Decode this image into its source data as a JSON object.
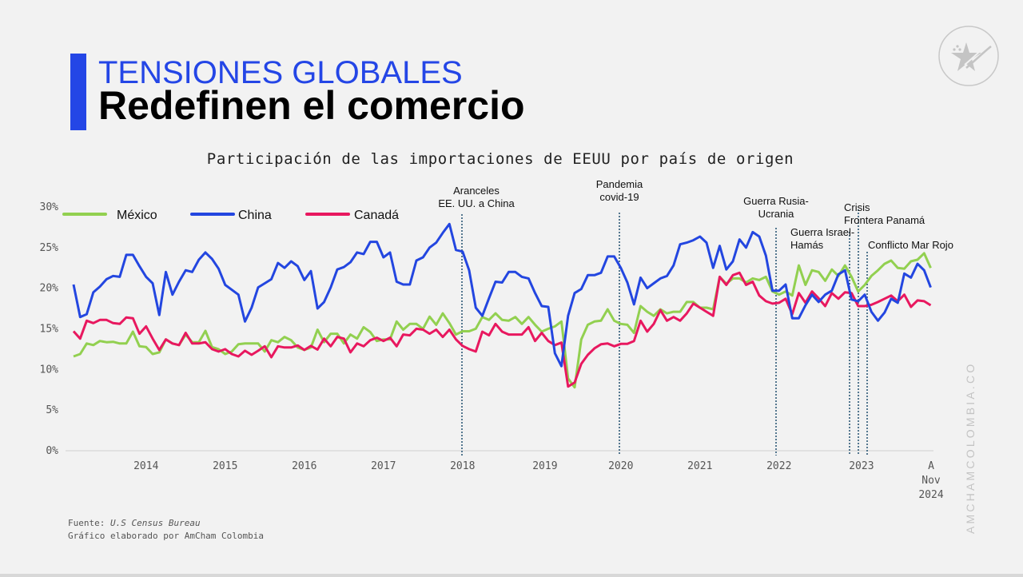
{
  "header": {
    "title_line1": "TENSIONES GLOBALES",
    "title_line2": "Redefinen el comercio"
  },
  "logo": {
    "name": "amcham-star-logo-icon"
  },
  "side_text": "AMCHAMCOLOMBIA.CO",
  "source": {
    "label": "Fuente: ",
    "value": "U.S Census Bureau",
    "credit": "Gráfico elaborado por AmCham Colombia"
  },
  "colors": {
    "mexico": "#92d050",
    "china": "#2346e0",
    "canada": "#e8185f",
    "background": "#f2f2f2",
    "accent": "#2446e6"
  },
  "chart_data": {
    "type": "line",
    "title": "Participación de las importaciones de EEUU por país de origen",
    "xlabel": "",
    "ylabel": "",
    "ylim": [
      0,
      30
    ],
    "y_ticks": [
      "0%",
      "5%",
      "10%",
      "15%",
      "20%",
      "25%",
      "30%"
    ],
    "x_ticks": [
      "2014",
      "2015",
      "2016",
      "2017",
      "2018",
      "2019",
      "2020",
      "2021",
      "2022",
      "2023"
    ],
    "x_last_label": [
      "A",
      "Nov",
      "2024"
    ],
    "grid": false,
    "legend": "top-left",
    "frequency": "monthly",
    "series": [
      {
        "name": "México",
        "color": "#92d050",
        "values": [
          11.6,
          11.9,
          13.2,
          13.0,
          13.5,
          13.35,
          13.4,
          13.2,
          13.2,
          14.65,
          12.85,
          12.75,
          11.9,
          12.1,
          13.7,
          13.2,
          13.0,
          14.3,
          13.35,
          13.35,
          14.75,
          12.75,
          12.5,
          11.9,
          12.2,
          13.1,
          13.2,
          13.2,
          13.2,
          12.2,
          13.6,
          13.35,
          14.0,
          13.6,
          12.7,
          12.4,
          12.7,
          14.9,
          13.35,
          14.4,
          14.4,
          13.2,
          14.3,
          13.8,
          15.2,
          14.6,
          13.5,
          13.7,
          13.7,
          15.9,
          14.9,
          15.6,
          15.6,
          15.0,
          16.5,
          15.5,
          16.9,
          15.7,
          14.3,
          14.7,
          14.7,
          15.0,
          16.45,
          16.1,
          16.9,
          16.1,
          16.0,
          16.45,
          15.6,
          16.45,
          15.5,
          14.65,
          15.0,
          15.3,
          15.9,
          8.9,
          7.8,
          13.7,
          15.5,
          15.9,
          16.0,
          17.4,
          16.0,
          15.6,
          15.5,
          14.5,
          17.8,
          17.1,
          16.6,
          17.4,
          16.9,
          17.1,
          17.1,
          18.3,
          18.3,
          17.6,
          17.6,
          17.4,
          21.4,
          20.55,
          21.2,
          21.2,
          20.7,
          21.2,
          21.0,
          21.4,
          19.6,
          19.2,
          19.6,
          19.1,
          22.8,
          20.4,
          22.2,
          22.0,
          20.9,
          22.3,
          21.5,
          22.8,
          21.4,
          19.6,
          20.4,
          21.5,
          22.2,
          23.0,
          23.4,
          22.5,
          22.4,
          23.3,
          23.5,
          24.3,
          22.5
        ]
      },
      {
        "name": "China",
        "color": "#2346e0",
        "values": [
          20.45,
          16.45,
          16.8,
          19.5,
          20.2,
          21.1,
          21.5,
          21.4,
          24.1,
          24.1,
          22.7,
          21.4,
          20.6,
          16.7,
          22.0,
          19.2,
          20.8,
          22.2,
          22.0,
          23.5,
          24.4,
          23.6,
          22.4,
          20.4,
          19.8,
          19.2,
          15.9,
          17.6,
          20.1,
          20.6,
          21.1,
          23.1,
          22.5,
          23.3,
          22.7,
          21.0,
          22.1,
          17.5,
          18.3,
          20.1,
          22.3,
          22.6,
          23.2,
          24.4,
          24.2,
          25.7,
          25.7,
          23.8,
          24.4,
          20.8,
          20.45,
          20.45,
          23.4,
          23.8,
          25.0,
          25.6,
          26.8,
          27.9,
          24.7,
          24.5,
          22.2,
          17.6,
          16.6,
          18.75,
          20.8,
          20.7,
          22.0,
          22.0,
          21.4,
          21.2,
          19.4,
          17.8,
          17.7,
          12.0,
          10.4,
          16.6,
          19.4,
          19.9,
          21.6,
          21.6,
          21.9,
          23.9,
          23.9,
          22.5,
          20.7,
          18.0,
          21.3,
          20.0,
          20.6,
          21.2,
          21.5,
          22.8,
          25.4,
          25.6,
          25.9,
          26.35,
          25.6,
          22.5,
          25.2,
          22.3,
          23.3,
          26.0,
          25.0,
          26.9,
          26.35,
          24.0,
          19.7,
          19.7,
          20.45,
          16.3,
          16.3,
          17.9,
          19.2,
          18.3,
          19.2,
          19.7,
          21.7,
          22.2,
          18.6,
          18.4,
          19.2,
          17.1,
          16.0,
          17.0,
          18.7,
          18.2,
          21.8,
          21.3,
          23.0,
          22.2,
          20.1
        ]
      },
      {
        "name": "Canadá",
        "color": "#e8185f",
        "values": [
          14.7,
          13.8,
          16.0,
          15.7,
          16.1,
          16.1,
          15.7,
          15.6,
          16.4,
          16.3,
          14.4,
          15.3,
          13.8,
          12.4,
          13.7,
          13.2,
          13.0,
          14.5,
          13.2,
          13.2,
          13.35,
          12.5,
          12.2,
          12.5,
          11.9,
          11.6,
          12.3,
          11.8,
          12.3,
          12.85,
          11.5,
          12.85,
          12.7,
          12.7,
          12.95,
          12.4,
          12.9,
          12.45,
          13.8,
          12.85,
          14.0,
          13.8,
          12.1,
          13.2,
          12.85,
          13.6,
          13.9,
          13.5,
          13.9,
          12.85,
          14.3,
          14.2,
          15.0,
          14.9,
          14.4,
          14.9,
          14.0,
          14.9,
          13.7,
          12.9,
          12.5,
          12.2,
          14.65,
          14.2,
          15.6,
          14.65,
          14.3,
          14.3,
          14.3,
          15.2,
          13.5,
          14.5,
          13.5,
          13.0,
          13.3,
          7.9,
          8.4,
          10.7,
          11.8,
          12.6,
          13.1,
          13.2,
          12.85,
          13.15,
          13.15,
          13.5,
          16.0,
          14.65,
          15.6,
          17.3,
          16.0,
          16.45,
          16.0,
          16.9,
          18.1,
          17.6,
          17.1,
          16.6,
          21.4,
          20.4,
          21.6,
          21.9,
          20.4,
          20.8,
          19.1,
          18.4,
          18.1,
          18.2,
          18.7,
          16.8,
          19.4,
          18.2,
          19.6,
          18.75,
          17.8,
          19.4,
          18.7,
          19.5,
          19.4,
          17.8,
          17.8,
          17.95,
          18.3,
          18.7,
          19.1,
          18.4,
          19.2,
          17.7,
          18.5,
          18.4,
          17.9
        ]
      }
    ],
    "annotations": [
      {
        "lines": [
          "Aranceles",
          "EE. UU. a  China"
        ]
      },
      {
        "lines": [
          "Pandemia",
          "covid-19"
        ]
      },
      {
        "lines": [
          "Guerra Rusia-",
          "Ucrania"
        ]
      },
      {
        "lines": [
          "Guerra Israel-",
          "Hamás"
        ]
      },
      {
        "lines": [
          "Crisis",
          "Frontera Panamá"
        ]
      },
      {
        "lines": [
          "Conflicto Mar Rojo"
        ]
      }
    ]
  }
}
